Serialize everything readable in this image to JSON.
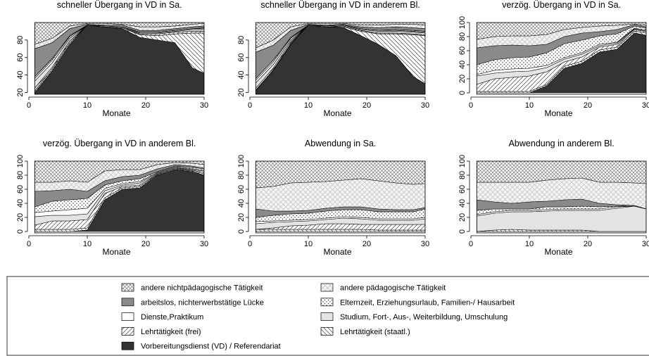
{
  "chart_data": {
    "type": "state-distribution",
    "legend": [
      {
        "name": "Vorbereitungsdienst (VD) / Referendariat",
        "pattern": "black"
      },
      {
        "name": "Lehrtätigkeit (staatl.)",
        "pattern": "backslash"
      },
      {
        "name": "Lehrtätigkeit (frei)",
        "pattern": "slash"
      },
      {
        "name": "Studium, Fort-, Aus-, Weiterbildung, Umschulung",
        "pattern": "lightgray"
      },
      {
        "name": "Dienste,Praktikum",
        "pattern": "white"
      },
      {
        "name": "Elternzeit, Erziehungsurlaub, Familien-/ Hausarbeit",
        "pattern": "dots"
      },
      {
        "name": "arbeitslos, nichterwerbstätige Lücke",
        "pattern": "gray"
      },
      {
        "name": "andere pädagogische Tätigkeit",
        "pattern": "cross"
      },
      {
        "name": "andere nichtpädagogische Tätigkeit",
        "pattern": "crosshatch"
      }
    ],
    "panels": [
      {
        "title": "schneller Übergang in VD in Sa.",
        "xlabel": "Monate",
        "x": [
          1,
          4,
          7,
          10,
          13,
          16,
          19,
          22,
          25,
          28,
          30
        ],
        "xlim": [
          0,
          30
        ],
        "xticks": [
          0,
          10,
          20,
          30
        ],
        "ylim": [
          18,
          100
        ],
        "yticks": [
          20,
          40,
          60,
          80
        ],
        "values": [
          [
            20,
            45,
            75,
            97,
            95,
            93,
            83,
            80,
            77,
            48,
            42
          ],
          [
            2,
            2,
            2,
            0,
            0,
            1,
            3,
            5,
            10,
            40,
            46
          ],
          [
            3,
            2,
            2,
            0,
            0,
            0,
            1,
            2,
            2,
            2,
            2
          ],
          [
            8,
            5,
            3,
            0,
            1,
            1,
            1,
            1,
            1,
            2,
            2
          ],
          [
            3,
            3,
            2,
            0,
            0,
            0,
            1,
            1,
            1,
            1,
            1
          ],
          [
            2,
            2,
            1,
            0,
            0,
            0,
            0,
            0,
            0,
            0,
            1
          ],
          [
            32,
            18,
            8,
            1,
            1,
            2,
            2,
            2,
            2,
            2,
            2
          ],
          [
            5,
            5,
            3,
            1,
            2,
            1,
            4,
            4,
            3,
            3,
            3
          ],
          [
            25,
            18,
            4,
            1,
            1,
            2,
            5,
            5,
            4,
            2,
            1
          ]
        ]
      },
      {
        "title": "schneller Übergang in VD in anderem Bl.",
        "xlabel": "Monate",
        "x": [
          1,
          4,
          7,
          10,
          13,
          16,
          19,
          22,
          25,
          28,
          30
        ],
        "xlim": [
          0,
          30
        ],
        "xticks": [
          0,
          10,
          20,
          30
        ],
        "ylim": [
          18,
          100
        ],
        "yticks": [
          20,
          40,
          60,
          80
        ],
        "values": [
          [
            22,
            45,
            75,
            97,
            95,
            94,
            85,
            75,
            62,
            38,
            30
          ],
          [
            1,
            1,
            1,
            0,
            0,
            1,
            5,
            12,
            25,
            48,
            55
          ],
          [
            2,
            2,
            2,
            0,
            0,
            1,
            1,
            1,
            1,
            1,
            1
          ],
          [
            6,
            4,
            2,
            0,
            1,
            1,
            1,
            2,
            2,
            2,
            2
          ],
          [
            3,
            3,
            2,
            0,
            0,
            0,
            1,
            1,
            1,
            1,
            1
          ],
          [
            2,
            2,
            1,
            0,
            0,
            0,
            0,
            0,
            1,
            1,
            1
          ],
          [
            30,
            17,
            8,
            1,
            1,
            1,
            2,
            3,
            3,
            3,
            3
          ],
          [
            5,
            6,
            4,
            1,
            2,
            1,
            2,
            3,
            3,
            4,
            4
          ],
          [
            29,
            20,
            5,
            1,
            1,
            1,
            3,
            3,
            2,
            2,
            3
          ]
        ]
      },
      {
        "title": "verzög. Übergang in VD in Sa.",
        "xlabel": "Monate",
        "x": [
          1,
          4,
          7,
          10,
          13,
          16,
          19,
          22,
          25,
          28,
          30
        ],
        "xlim": [
          0,
          30
        ],
        "xticks": [
          0,
          10,
          20,
          30
        ],
        "ylim": [
          -2,
          100
        ],
        "yticks": [
          0,
          20,
          40,
          60,
          80,
          100
        ],
        "values": [
          [
            0,
            0,
            0,
            0,
            10,
            35,
            42,
            58,
            62,
            85,
            82
          ],
          [
            2,
            2,
            2,
            2,
            2,
            3,
            3,
            3,
            3,
            3,
            3
          ],
          [
            10,
            18,
            20,
            22,
            18,
            6,
            6,
            4,
            4,
            2,
            2
          ],
          [
            12,
            8,
            8,
            7,
            6,
            4,
            4,
            2,
            2,
            1,
            1
          ],
          [
            2,
            4,
            4,
            4,
            3,
            2,
            2,
            2,
            1,
            1,
            1
          ],
          [
            14,
            15,
            16,
            16,
            18,
            20,
            18,
            12,
            12,
            3,
            3
          ],
          [
            24,
            20,
            18,
            16,
            12,
            10,
            10,
            6,
            6,
            2,
            2
          ],
          [
            12,
            13,
            13,
            14,
            14,
            10,
            8,
            8,
            6,
            1,
            2
          ],
          [
            24,
            20,
            19,
            19,
            17,
            10,
            7,
            5,
            4,
            2,
            4
          ]
        ]
      },
      {
        "title": "verzög. Übergang in VD in anderem Bl.",
        "xlabel": "Monate",
        "x": [
          1,
          4,
          7,
          10,
          13,
          16,
          19,
          22,
          25,
          28,
          30
        ],
        "xlim": [
          0,
          30
        ],
        "xticks": [
          0,
          10,
          20,
          30
        ],
        "ylim": [
          -2,
          100
        ],
        "yticks": [
          0,
          20,
          40,
          60,
          80,
          100
        ],
        "values": [
          [
            0,
            0,
            0,
            2,
            45,
            60,
            62,
            80,
            88,
            85,
            80
          ],
          [
            3,
            3,
            3,
            3,
            3,
            2,
            2,
            1,
            1,
            1,
            2
          ],
          [
            6,
            12,
            12,
            12,
            6,
            2,
            2,
            1,
            1,
            1,
            2
          ],
          [
            12,
            8,
            8,
            8,
            4,
            2,
            3,
            1,
            1,
            1,
            2
          ],
          [
            6,
            6,
            8,
            8,
            3,
            2,
            2,
            1,
            1,
            1,
            1
          ],
          [
            8,
            14,
            14,
            14,
            5,
            4,
            4,
            1,
            1,
            2,
            2
          ],
          [
            22,
            15,
            15,
            10,
            6,
            6,
            5,
            4,
            2,
            2,
            1
          ],
          [
            13,
            12,
            12,
            13,
            14,
            10,
            8,
            6,
            3,
            4,
            5
          ],
          [
            30,
            30,
            28,
            30,
            14,
            12,
            12,
            5,
            2,
            3,
            5
          ]
        ]
      },
      {
        "title": "Abwendung in Sa.",
        "xlabel": "Monate",
        "x": [
          1,
          4,
          7,
          10,
          13,
          16,
          19,
          22,
          25,
          28,
          30
        ],
        "xlim": [
          0,
          30
        ],
        "xticks": [
          0,
          10,
          20,
          30
        ],
        "ylim": [
          -2,
          100
        ],
        "yticks": [
          0,
          20,
          40,
          60,
          80,
          100
        ],
        "values": [
          [
            0,
            0,
            0,
            0,
            0,
            0,
            0,
            0,
            0,
            0,
            0
          ],
          [
            3,
            3,
            3,
            3,
            3,
            3,
            3,
            2,
            2,
            2,
            2
          ],
          [
            0,
            2,
            5,
            6,
            8,
            8,
            7,
            8,
            8,
            8,
            8
          ],
          [
            8,
            8,
            6,
            6,
            6,
            8,
            8,
            6,
            6,
            6,
            8
          ],
          [
            3,
            2,
            2,
            2,
            2,
            2,
            2,
            2,
            2,
            2,
            2
          ],
          [
            6,
            8,
            9,
            9,
            10,
            10,
            11,
            10,
            10,
            10,
            12
          ],
          [
            12,
            6,
            4,
            4,
            4,
            4,
            4,
            4,
            3,
            3,
            2
          ],
          [
            30,
            35,
            40,
            40,
            38,
            38,
            40,
            40,
            38,
            36,
            34
          ],
          [
            38,
            36,
            31,
            30,
            29,
            27,
            25,
            28,
            31,
            33,
            32
          ]
        ]
      },
      {
        "title": "Abwendung in anderem Bl.",
        "xlabel": "Monate",
        "x": [
          1,
          4,
          7,
          10,
          13,
          16,
          19,
          22,
          25,
          28,
          30
        ],
        "xlim": [
          0,
          30
        ],
        "xticks": [
          0,
          10,
          20,
          30
        ],
        "ylim": [
          -2,
          100
        ],
        "yticks": [
          0,
          20,
          40,
          60,
          80,
          100
        ],
        "values": [
          [
            0,
            0,
            0,
            0,
            0,
            0,
            0,
            0,
            0,
            0,
            0
          ],
          [
            0,
            2,
            3,
            2,
            2,
            2,
            2,
            0,
            0,
            0,
            0
          ],
          [
            0,
            0,
            0,
            0,
            0,
            0,
            0,
            0,
            0,
            0,
            0
          ],
          [
            22,
            24,
            25,
            26,
            27,
            28,
            28,
            30,
            33,
            36,
            32
          ],
          [
            2,
            2,
            2,
            2,
            2,
            2,
            2,
            2,
            2,
            0,
            0
          ],
          [
            6,
            4,
            2,
            2,
            4,
            3,
            4,
            3,
            1,
            0,
            0
          ],
          [
            15,
            10,
            8,
            10,
            8,
            10,
            10,
            5,
            2,
            1,
            0
          ],
          [
            25,
            28,
            30,
            28,
            30,
            30,
            30,
            30,
            32,
            32,
            36
          ],
          [
            30,
            30,
            30,
            30,
            27,
            25,
            24,
            30,
            30,
            31,
            32
          ]
        ]
      }
    ]
  }
}
